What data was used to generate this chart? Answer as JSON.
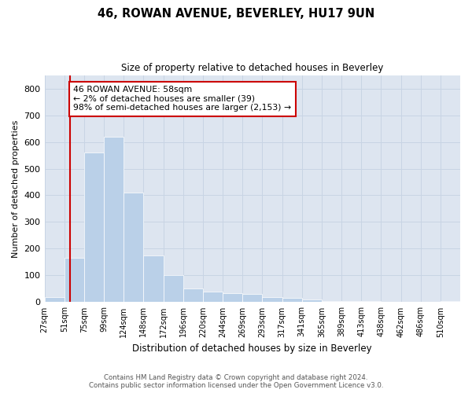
{
  "title_line1": "46, ROWAN AVENUE, BEVERLEY, HU17 9UN",
  "title_line2": "Size of property relative to detached houses in Beverley",
  "xlabel": "Distribution of detached houses by size in Beverley",
  "ylabel": "Number of detached properties",
  "footer_line1": "Contains HM Land Registry data © Crown copyright and database right 2024.",
  "footer_line2": "Contains public sector information licensed under the Open Government Licence v3.0.",
  "bin_labels": [
    "27sqm",
    "51sqm",
    "75sqm",
    "99sqm",
    "124sqm",
    "148sqm",
    "172sqm",
    "196sqm",
    "220sqm",
    "244sqm",
    "269sqm",
    "293sqm",
    "317sqm",
    "341sqm",
    "365sqm",
    "389sqm",
    "413sqm",
    "438sqm",
    "462sqm",
    "486sqm",
    "510sqm"
  ],
  "bar_values": [
    20,
    165,
    560,
    620,
    410,
    175,
    100,
    50,
    40,
    35,
    30,
    20,
    15,
    10,
    5,
    5,
    5,
    0,
    0,
    0,
    5
  ],
  "bar_color": "#bad0e8",
  "grid_color": "#c8d4e4",
  "background_color": "#dde5f0",
  "annotation_text_line1": "46 ROWAN AVENUE: 58sqm",
  "annotation_text_line2": "← 2% of detached houses are smaller (39)",
  "annotation_text_line3": "98% of semi-detached houses are larger (2,153) →",
  "annotation_box_facecolor": "#ffffff",
  "annotation_box_edgecolor": "#cc0000",
  "red_line_color": "#cc0000",
  "ylim_max": 850,
  "yticks": [
    0,
    100,
    200,
    300,
    400,
    500,
    600,
    700,
    800
  ],
  "red_line_x": 1.29
}
